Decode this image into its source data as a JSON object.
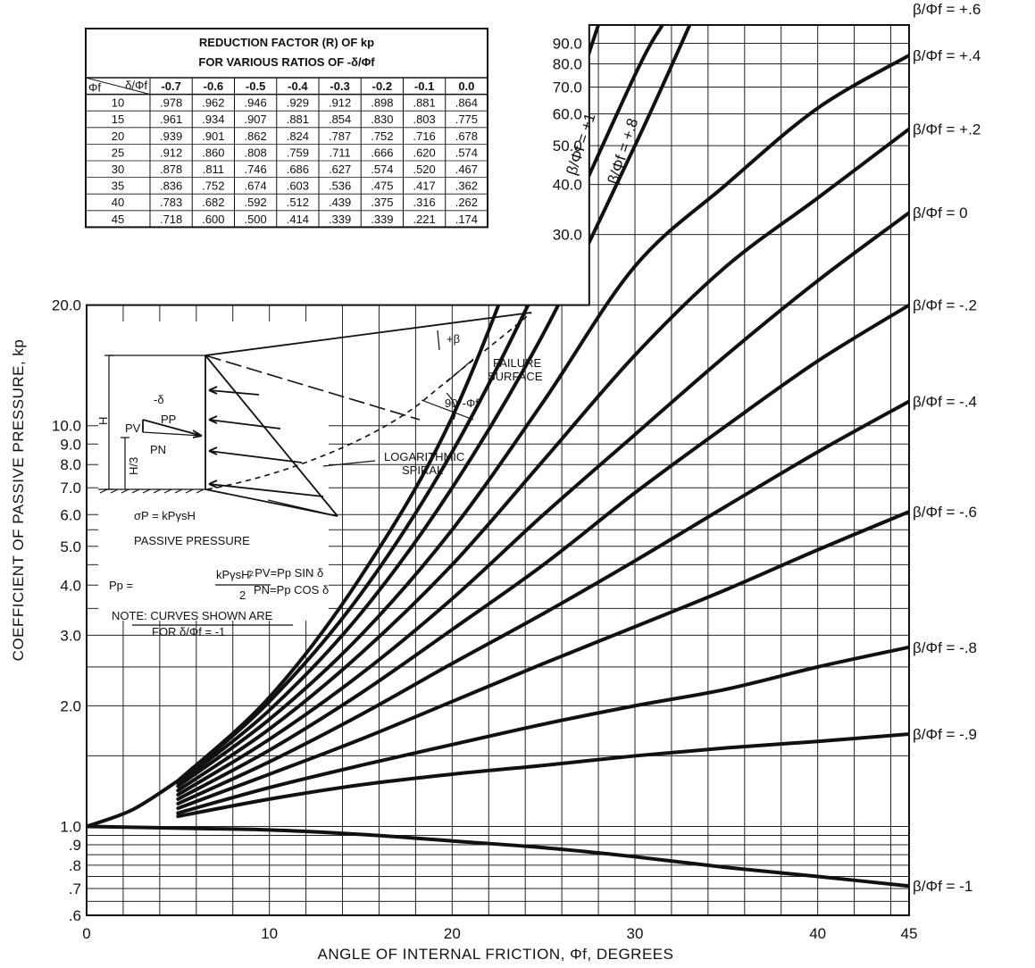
{
  "chart_data": {
    "type": "line",
    "title": "",
    "xlabel": "ANGLE OF INTERNAL FRICTION, Φf, DEGREES",
    "ylabel": "COEFFICIENT OF PASSIVE PRESSURE, kp",
    "xlim": [
      0,
      45
    ],
    "ylim": [
      0.6,
      100
    ],
    "y_scale": "log",
    "grid": true,
    "x_ticks": [
      0,
      10,
      20,
      30,
      40,
      45
    ],
    "y_ticks": [
      {
        "value": 0.6,
        "label": ".6"
      },
      {
        "value": 0.7,
        "label": ".7"
      },
      {
        "value": 0.8,
        "label": ".8"
      },
      {
        "value": 0.9,
        "label": ".9"
      },
      {
        "value": 1.0,
        "label": "1.0"
      },
      {
        "value": 2.0,
        "label": "2.0"
      },
      {
        "value": 3.0,
        "label": "3.0"
      },
      {
        "value": 4.0,
        "label": "4.0"
      },
      {
        "value": 5.0,
        "label": "5.0"
      },
      {
        "value": 6.0,
        "label": "6.0"
      },
      {
        "value": 7.0,
        "label": "7.0"
      },
      {
        "value": 8.0,
        "label": "8.0"
      },
      {
        "value": 9.0,
        "label": "9.0"
      },
      {
        "value": 10.0,
        "label": "10.0"
      },
      {
        "value": 20.0,
        "label": "20.0"
      },
      {
        "value": 30.0,
        "label": "30.0"
      },
      {
        "value": 40.0,
        "label": "40.0"
      },
      {
        "value": 50.0,
        "label": "50.0"
      },
      {
        "value": 60.0,
        "label": "60.0"
      },
      {
        "value": 70.0,
        "label": "70.0"
      },
      {
        "value": 80.0,
        "label": "80.0"
      },
      {
        "value": 90.0,
        "label": "90.0"
      }
    ],
    "series": [
      {
        "name": "β/Φf = +1",
        "x": [
          5,
          10,
          15,
          20,
          25,
          28
        ],
        "y": [
          1.3,
          2.1,
          4.2,
          10.5,
          40,
          100
        ],
        "label_position": "on-curve"
      },
      {
        "name": "β/Φf = +.8",
        "x": [
          5,
          10,
          15,
          20,
          25,
          30,
          31.5
        ],
        "y": [
          1.29,
          2.05,
          3.8,
          8.6,
          24,
          75,
          100
        ],
        "label_position": "on-curve"
      },
      {
        "name": "β/Φf = +.6",
        "x": [
          5,
          10,
          15,
          20,
          25,
          30,
          33
        ],
        "y": [
          1.28,
          1.95,
          3.4,
          7.0,
          17,
          50,
          100
        ],
        "label_position": "right"
      },
      {
        "name": "β/Φf = +.4",
        "x": [
          5,
          10,
          15,
          20,
          25,
          30,
          35,
          40,
          45
        ],
        "y": [
          1.26,
          1.85,
          3.0,
          5.5,
          11.5,
          25,
          40,
          62,
          84
        ],
        "label_position": "right"
      },
      {
        "name": "β/Φf = +.2",
        "x": [
          5,
          10,
          15,
          20,
          25,
          30,
          35,
          40,
          45
        ],
        "y": [
          1.23,
          1.75,
          2.7,
          4.5,
          8.2,
          15,
          25,
          37,
          55
        ],
        "label_position": "right"
      },
      {
        "name": "β/Φf = 0",
        "x": [
          5,
          10,
          15,
          20,
          25,
          30,
          35,
          40,
          45
        ],
        "y": [
          1.2,
          1.65,
          2.4,
          3.7,
          6.0,
          9.5,
          15,
          23,
          34
        ],
        "label_position": "right"
      },
      {
        "name": "β/Φf = -.2",
        "x": [
          5,
          10,
          15,
          20,
          25,
          30,
          35,
          40,
          45
        ],
        "y": [
          1.17,
          1.55,
          2.15,
          3.1,
          4.5,
          6.8,
          10,
          14.5,
          20
        ],
        "label_position": "right"
      },
      {
        "name": "β/Φf = -.4",
        "x": [
          5,
          10,
          15,
          20,
          25,
          30,
          35,
          40,
          45
        ],
        "y": [
          1.14,
          1.45,
          1.9,
          2.55,
          3.4,
          4.6,
          6.3,
          8.6,
          11.5
        ],
        "label_position": "right"
      },
      {
        "name": "β/Φf = -.6",
        "x": [
          5,
          10,
          15,
          20,
          25,
          30,
          35,
          40,
          45
        ],
        "y": [
          1.11,
          1.35,
          1.65,
          2.05,
          2.55,
          3.15,
          3.9,
          4.9,
          6.1
        ],
        "label_position": "right"
      },
      {
        "name": "β/Φf = -.8",
        "x": [
          5,
          10,
          15,
          20,
          25,
          30,
          35,
          40,
          45
        ],
        "y": [
          1.08,
          1.25,
          1.42,
          1.6,
          1.8,
          2.0,
          2.2,
          2.5,
          2.8
        ],
        "label_position": "right"
      },
      {
        "name": "β/Φf = -.9",
        "x": [
          5,
          10,
          15,
          20,
          25,
          30,
          35,
          40,
          45
        ],
        "y": [
          1.06,
          1.17,
          1.27,
          1.35,
          1.42,
          1.5,
          1.57,
          1.63,
          1.7
        ],
        "label_position": "right"
      },
      {
        "name": "β/Φf = -1",
        "x": [
          0,
          5,
          10,
          15,
          20,
          25,
          30,
          35,
          40,
          45
        ],
        "y": [
          1.0,
          0.99,
          0.98,
          0.955,
          0.92,
          0.885,
          0.84,
          0.79,
          0.75,
          0.71
        ],
        "label_position": "right"
      },
      {
        "name": "",
        "x": [
          0,
          2.5,
          5
        ],
        "y": [
          1.0,
          1.1,
          1.3
        ],
        "label_position": "none"
      }
    ]
  },
  "reduction_table": {
    "title_line1": "REDUCTION FACTOR (R) OF kp",
    "title_line2": "FOR VARIOUS RATIOS OF -δ/Φf",
    "corner_phi": "Φf",
    "corner_ratio": "δ/Φf",
    "columns": [
      "-0.7",
      "-0.6",
      "-0.5",
      "-0.4",
      "-0.3",
      "-0.2",
      "-0.1",
      "0.0"
    ],
    "rows": [
      {
        "phi": "10",
        "values": [
          ".978",
          ".962",
          ".946",
          ".929",
          ".912",
          ".898",
          ".881",
          ".864"
        ]
      },
      {
        "phi": "15",
        "values": [
          ".961",
          ".934",
          ".907",
          ".881",
          ".854",
          ".830",
          ".803",
          ".775"
        ]
      },
      {
        "phi": "20",
        "values": [
          ".939",
          ".901",
          ".862",
          ".824",
          ".787",
          ".752",
          ".716",
          ".678"
        ]
      },
      {
        "phi": "25",
        "values": [
          ".912",
          ".860",
          ".808",
          ".759",
          ".711",
          ".666",
          ".620",
          ".574"
        ]
      },
      {
        "phi": "30",
        "values": [
          ".878",
          ".811",
          ".746",
          ".686",
          ".627",
          ".574",
          ".520",
          ".467"
        ]
      },
      {
        "phi": "35",
        "values": [
          ".836",
          ".752",
          ".674",
          ".603",
          ".536",
          ".475",
          ".417",
          ".362"
        ]
      },
      {
        "phi": "40",
        "values": [
          ".783",
          ".682",
          ".592",
          ".512",
          ".439",
          ".375",
          ".316",
          ".262"
        ]
      },
      {
        "phi": "45",
        "values": [
          ".718",
          ".600",
          ".500",
          ".414",
          ".339",
          ".339",
          ".221",
          ".174"
        ]
      }
    ]
  },
  "inset": {
    "plus_beta": "+β",
    "failure_surface_1": "FAILURE",
    "failure_surface_2": "SURFACE",
    "angle_label": "90°-Φf",
    "minus_delta": "-δ",
    "pp": "PP",
    "pv": "PV",
    "pn": "PN",
    "h": "H",
    "h3": "H/3",
    "log_spiral_1": "LOGARITHMIC",
    "log_spiral_2": "SPIRAL",
    "sigma_formula": "σP = kPγsH",
    "passive_pressure": "PASSIVE PRESSURE",
    "pp_formula_lhs": "Pp =",
    "pp_formula_num": "kPγsH²",
    "pp_formula_den": "2",
    "pv_formula": "; PV=Pp SIN δ",
    "pn_formula": "PN=Pp COS δ",
    "note_1": "NOTE: CURVES SHOWN ARE",
    "note_2": "FOR  δ/Φf = -1"
  }
}
